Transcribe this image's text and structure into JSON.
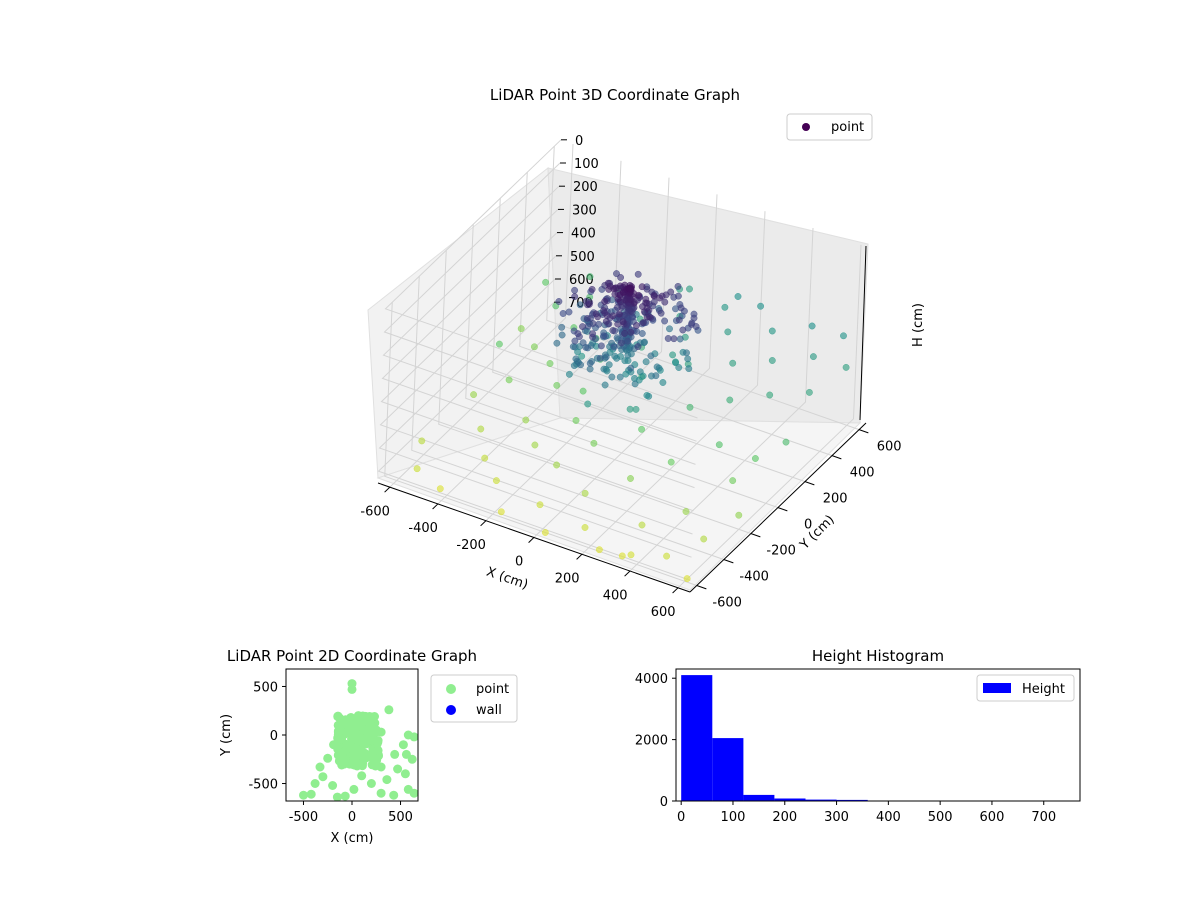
{
  "chart_data": [
    {
      "type": "scatter",
      "projection": "3d",
      "title": "LiDAR Point 3D Coordinate Graph",
      "xlabel": "X (cm)",
      "ylabel": "Y (cm)",
      "zlabel": "H (cm)",
      "xlim": [
        -650,
        650
      ],
      "ylim": [
        -650,
        650
      ],
      "zlim": [
        750,
        0
      ],
      "xticks": [
        "-600",
        "-400",
        "-200",
        "0",
        "200",
        "400",
        "600"
      ],
      "yticks": [
        "-600",
        "-400",
        "-200",
        "0",
        "200",
        "400",
        "600"
      ],
      "zticks": [
        "0",
        "100",
        "200",
        "300",
        "400",
        "500",
        "600",
        "700"
      ],
      "colormap": "viridis",
      "grid": true,
      "legend": {
        "placement": "upper-right",
        "entries": [
          {
            "label": "point",
            "color": "#440154"
          }
        ]
      },
      "series": [
        {
          "name": "point",
          "points": [
            [
              -610,
              330,
              620
            ],
            [
              -585,
              120,
              560
            ],
            [
              -560,
              -110,
              640
            ],
            [
              -520,
              420,
              540
            ],
            [
              -505,
              240,
              610
            ],
            [
              -470,
              -10,
              600
            ],
            [
              -450,
              -250,
              670
            ],
            [
              -430,
              510,
              520
            ],
            [
              -410,
              360,
              560
            ],
            [
              -390,
              150,
              590
            ],
            [
              -360,
              -380,
              690
            ],
            [
              -340,
              560,
              480
            ],
            [
              -320,
              -150,
              640
            ],
            [
              -300,
              40,
              590
            ],
            [
              -280,
              290,
              520
            ],
            [
              -260,
              -470,
              700
            ],
            [
              -240,
              460,
              470
            ],
            [
              -220,
              -260,
              650
            ],
            [
              -200,
              180,
              520
            ],
            [
              -180,
              20,
              560
            ],
            [
              -160,
              -610,
              720
            ],
            [
              -150,
              380,
              440
            ],
            [
              -130,
              -120,
              590
            ],
            [
              -110,
              600,
              420
            ],
            [
              -90,
              -330,
              650
            ],
            [
              -70,
              250,
              460
            ],
            [
              -50,
              -520,
              700
            ],
            [
              -30,
              460,
              430
            ],
            [
              -10,
              -200,
              600
            ],
            [
              10,
              110,
              480
            ],
            [
              40,
              -640,
              720
            ],
            [
              60,
              340,
              420
            ],
            [
              80,
              -420,
              660
            ],
            [
              100,
              560,
              400
            ],
            [
              120,
              -80,
              560
            ],
            [
              140,
              220,
              440
            ],
            [
              160,
              -560,
              700
            ],
            [
              180,
              440,
              410
            ],
            [
              200,
              -300,
              620
            ],
            [
              220,
              610,
              380
            ],
            [
              240,
              60,
              500
            ],
            [
              260,
              -630,
              720
            ],
            [
              280,
              300,
              430
            ],
            [
              300,
              -180,
              580
            ],
            [
              320,
              520,
              400
            ],
            [
              340,
              -460,
              680
            ],
            [
              360,
              140,
              470
            ],
            [
              380,
              -610,
              710
            ],
            [
              400,
              380,
              420
            ],
            [
              420,
              -40,
              540
            ],
            [
              440,
              600,
              380
            ],
            [
              460,
              -350,
              640
            ],
            [
              480,
              220,
              450
            ],
            [
              500,
              -560,
              700
            ],
            [
              520,
              470,
              410
            ],
            [
              540,
              -150,
              590
            ],
            [
              560,
              620,
              390
            ],
            [
              580,
              -430,
              670
            ],
            [
              600,
              300,
              440
            ],
            [
              620,
              -620,
              720
            ],
            [
              630,
              80,
              520
            ],
            [
              640,
              -280,
              630
            ],
            [
              -600,
              -420,
              680
            ],
            [
              -540,
              -560,
              700
            ],
            [
              -480,
              600,
              500
            ],
            [
              -420,
              -600,
              720
            ],
            [
              120,
              620,
              380
            ],
            [
              -80,
              620,
              420
            ],
            [
              350,
              -620,
              720
            ],
            [
              640,
              500,
              430
            ],
            [
              -640,
              560,
              560
            ],
            [
              560,
              -20,
              560
            ]
          ]
        }
      ]
    },
    {
      "type": "scatter",
      "title": "LiDAR Point 2D Coordinate Graph",
      "xlabel": "X (cm)",
      "ylabel": "Y (cm)",
      "xlim": [
        -680,
        680
      ],
      "ylim": [
        -680,
        680
      ],
      "xticks": [
        "-500",
        "0",
        "500"
      ],
      "yticks": [
        "500",
        "0",
        "-500"
      ],
      "grid": false,
      "legend": {
        "placement": "outside-right",
        "entries": [
          {
            "label": "point",
            "color": "#90ee90"
          },
          {
            "label": "wall",
            "color": "#0000ff"
          }
        ]
      },
      "series": [
        {
          "name": "point",
          "points": [
            [
              0,
              530
            ],
            [
              0,
              470
            ],
            [
              380,
              260
            ],
            [
              200,
              150
            ],
            [
              300,
              30
            ],
            [
              580,
              0
            ],
            [
              640,
              -20
            ],
            [
              530,
              -100
            ],
            [
              620,
              -250
            ],
            [
              440,
              -200
            ],
            [
              470,
              -350
            ],
            [
              550,
              -400
            ],
            [
              580,
              -560
            ],
            [
              430,
              -620
            ],
            [
              300,
              -600
            ],
            [
              200,
              -500
            ],
            [
              100,
              -420
            ],
            [
              20,
              -560
            ],
            [
              -70,
              -630
            ],
            [
              -150,
              -640
            ],
            [
              -200,
              -520
            ],
            [
              -300,
              -430
            ],
            [
              -330,
              -330
            ],
            [
              -380,
              -500
            ],
            [
              -420,
              -610
            ],
            [
              -500,
              -620
            ],
            [
              -250,
              -240
            ],
            [
              -190,
              -100
            ],
            [
              -140,
              40
            ],
            [
              -80,
              110
            ],
            [
              -10,
              180
            ],
            [
              60,
              140
            ],
            [
              120,
              60
            ],
            [
              160,
              -40
            ],
            [
              230,
              -120
            ],
            [
              260,
              -220
            ],
            [
              300,
              -330
            ],
            [
              360,
              -460
            ],
            [
              640,
              -600
            ],
            [
              560,
              -200
            ]
          ]
        },
        {
          "name": "wall",
          "points": []
        }
      ]
    },
    {
      "type": "bar",
      "subtype": "histogram",
      "title": "Height Histogram",
      "xlim": [
        -10,
        770
      ],
      "ylim": [
        0,
        4300
      ],
      "xticks": [
        "0",
        "100",
        "200",
        "300",
        "400",
        "500",
        "600",
        "700"
      ],
      "yticks": [
        "0",
        "2000",
        "4000"
      ],
      "grid": false,
      "legend": {
        "placement": "upper-right",
        "entries": [
          {
            "label": "Height",
            "color": "#0000ff"
          }
        ]
      },
      "series": [
        {
          "name": "Height",
          "bin_edges": [
            0,
            60,
            120,
            180,
            240,
            300,
            360,
            420,
            480,
            540,
            600,
            660,
            720
          ],
          "counts": [
            4100,
            2050,
            200,
            80,
            45,
            35,
            12,
            8,
            6,
            4,
            3,
            2
          ]
        }
      ]
    }
  ]
}
